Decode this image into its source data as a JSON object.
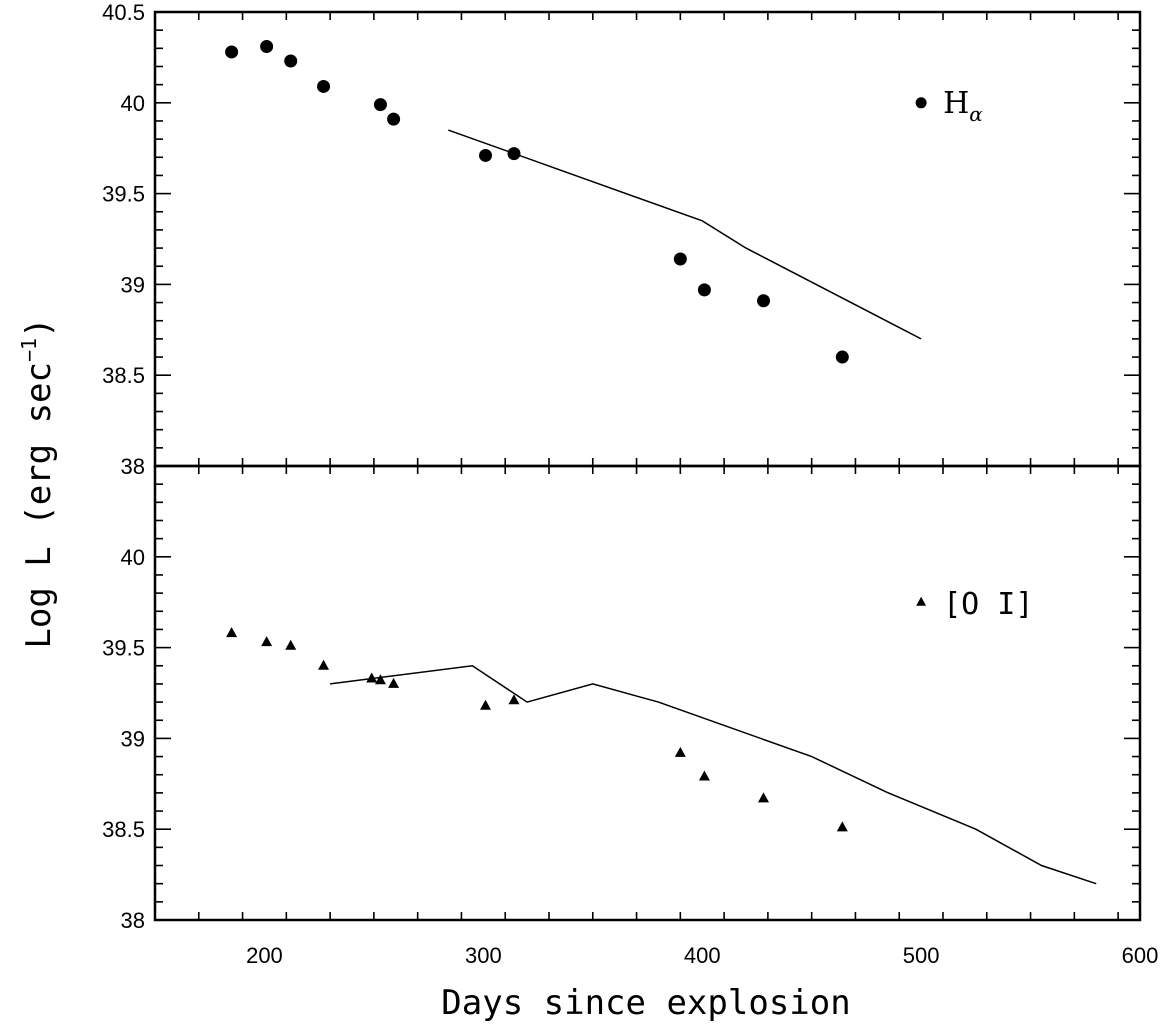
{
  "chart_data": {
    "type": "scatter",
    "xlabel": "Days since explosion",
    "ylabel": "Log L (erg sec",
    "ylabel_superscript": "−1",
    "ylabel_close": ")",
    "xlim": [
      150,
      600
    ],
    "x_ticks": [
      200,
      300,
      400,
      500,
      600
    ],
    "x_tick_labels": [
      "200",
      "300",
      "400",
      "500",
      "600"
    ],
    "panels": [
      {
        "ylim": [
          38,
          40.5
        ],
        "y_ticks": [
          38,
          38.5,
          39,
          39.5,
          40,
          40.5
        ],
        "y_tick_labels": [
          "38",
          "38.5",
          "39",
          "39.5",
          "40",
          "40.5"
        ],
        "series": [
          {
            "name": "H",
            "name_subscript": "α",
            "marker": "circle",
            "x": [
              185,
              201,
              212,
              227,
              253,
              259,
              301,
              314,
              390,
              401,
              428,
              464
            ],
            "y": [
              40.28,
              40.31,
              40.23,
              40.09,
              39.99,
              39.91,
              39.71,
              39.72,
              39.14,
              38.97,
              38.91,
              38.6
            ]
          }
        ],
        "model": {
          "x": [
            284,
            400,
            420,
            500
          ],
          "y": [
            39.85,
            39.35,
            39.2,
            38.7
          ]
        },
        "legend_position": "upper-right"
      },
      {
        "ylim": [
          38,
          40.5
        ],
        "y_ticks": [
          38,
          38.5,
          39,
          39.5,
          40
        ],
        "y_tick_labels": [
          "38",
          "38.5",
          "39",
          "39.5",
          "40"
        ],
        "series": [
          {
            "name": "[O I]",
            "marker": "triangle",
            "x": [
              185,
              201,
              212,
              227,
              249,
              253,
              259,
              301,
              314,
              390,
              401,
              428,
              464
            ],
            "y": [
              39.58,
              39.53,
              39.51,
              39.4,
              39.33,
              39.32,
              39.3,
              39.18,
              39.21,
              38.92,
              38.79,
              38.67,
              38.51
            ]
          }
        ],
        "model": {
          "x": [
            230,
            295,
            320,
            350,
            380,
            450,
            485,
            525,
            555,
            580
          ],
          "y": [
            39.3,
            39.4,
            39.2,
            39.3,
            39.2,
            38.9,
            38.7,
            38.5,
            38.3,
            38.2
          ]
        },
        "legend_position": "upper-right"
      }
    ],
    "grid": false
  }
}
